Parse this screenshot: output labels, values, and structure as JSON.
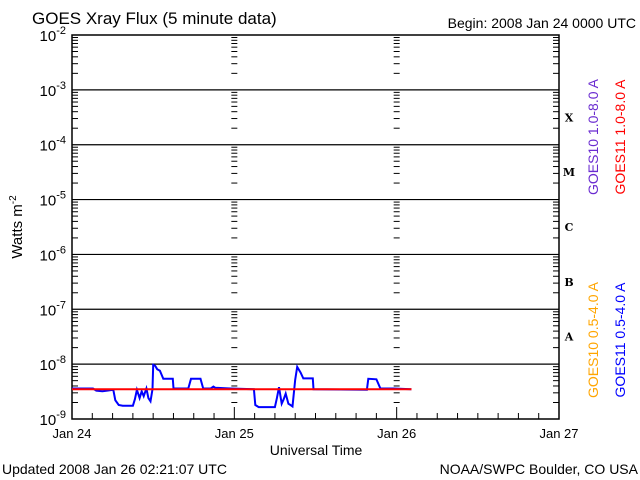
{
  "chart_data": {
    "type": "line",
    "title": "GOES Xray Flux (5 minute data)",
    "begin_label": "Begin:  2008 Jan 24 0000 UTC",
    "xlabel": "Universal Time",
    "ylabel": "Watts m",
    "ylabel_exp": "-2",
    "y_scale": "log",
    "ylim": [
      1e-09,
      0.01
    ],
    "xlim_hours": [
      0,
      72
    ],
    "x_ticks": [
      {
        "label": "Jan 24",
        "hour": 0
      },
      {
        "label": "Jan 25",
        "hour": 24
      },
      {
        "label": "Jan 26",
        "hour": 48
      },
      {
        "label": "Jan 27",
        "hour": 72
      }
    ],
    "y_ticks": [
      {
        "base": "10",
        "exp": "-2",
        "log": -2
      },
      {
        "base": "10",
        "exp": "-3",
        "log": -3
      },
      {
        "base": "10",
        "exp": "-4",
        "log": -4
      },
      {
        "base": "10",
        "exp": "-5",
        "log": -5
      },
      {
        "base": "10",
        "exp": "-6",
        "log": -6
      },
      {
        "base": "10",
        "exp": "-7",
        "log": -7
      },
      {
        "base": "10",
        "exp": "-8",
        "log": -8
      },
      {
        "base": "10",
        "exp": "-9",
        "log": -9
      }
    ],
    "flare_classes": [
      {
        "label": "X",
        "log": -3.5
      },
      {
        "label": "M",
        "log": -4.5
      },
      {
        "label": "C",
        "log": -5.5
      },
      {
        "label": "B",
        "log": -6.5
      },
      {
        "label": "A",
        "log": -7.5
      }
    ],
    "legend": [
      {
        "name": "GOES10 1.0-8.0 A",
        "color": "#6a2bd0"
      },
      {
        "name": "GOES11 1.0-8.0 A",
        "color": "#ff0000"
      },
      {
        "name": "GOES10 0.5-4.0 A",
        "color": "#ffa500"
      },
      {
        "name": "GOES11 0.5-4.0 A",
        "color": "#0000ff"
      }
    ],
    "legend_placement": "right",
    "series": [
      {
        "name": "GOES11 1.0-8.0 A",
        "color": "#ff0000",
        "hours": [
          0,
          50.2
        ],
        "values": [
          3.5e-09,
          3.5e-09
        ]
      },
      {
        "name": "GOES11 0.5-4.0 A",
        "color": "#0000ff",
        "hours": [
          0,
          3.1,
          3.6,
          4.5,
          5.2,
          6.1,
          6.4,
          6.9,
          7.5,
          9.0,
          9.3,
          9.6,
          10.0,
          10.3,
          10.6,
          11.0,
          11.3,
          11.6,
          11.9,
          12.0,
          12.3,
          12.6,
          13.0,
          13.5,
          14.9,
          15.0,
          17.2,
          17.6,
          19.0,
          19.4,
          20.5,
          20.9,
          21.2,
          23.4,
          26.9,
          27.1,
          27.6,
          30.0,
          30.3,
          30.6,
          31.0,
          31.3,
          31.6,
          32.0,
          32.3,
          32.6,
          33.0,
          33.3,
          33.8,
          34.2,
          35.6,
          35.7,
          43.6,
          43.8,
          45.0,
          45.6,
          47.5,
          50.2
        ],
        "values": [
          3.6e-09,
          3.6e-09,
          3.3e-09,
          3.2e-09,
          3.3e-09,
          3.4e-09,
          2.2e-09,
          1.8e-09,
          1.75e-09,
          1.75e-09,
          2.3e-09,
          3.4e-09,
          2.4e-09,
          3.2e-09,
          2.6e-09,
          3.6e-09,
          2.4e-09,
          2.1e-09,
          3.5e-09,
          9.7e-09,
          9.3e-09,
          8.1e-09,
          7.6e-09,
          5.4e-09,
          5.4e-09,
          3.6e-09,
          3.6e-09,
          5.4e-09,
          5.4e-09,
          3.6e-09,
          3.6e-09,
          3.9e-09,
          3.7e-09,
          3.6e-09,
          3.5e-09,
          1.8e-09,
          1.65e-09,
          1.65e-09,
          2.4e-09,
          3.8e-09,
          1.9e-09,
          2.3e-09,
          2.9e-09,
          1.9e-09,
          1.8e-09,
          1.7e-09,
          5.2e-09,
          8.9e-09,
          7e-09,
          5.5e-09,
          5.5e-09,
          3.5e-09,
          3.4e-09,
          5.4e-09,
          5.3e-09,
          3.6e-09,
          3.6e-09,
          3.5e-09
        ]
      }
    ]
  },
  "footer": {
    "updated": "Updated 2008 Jan 26 02:21:07 UTC",
    "credit": "NOAA/SWPC Boulder, CO USA"
  }
}
